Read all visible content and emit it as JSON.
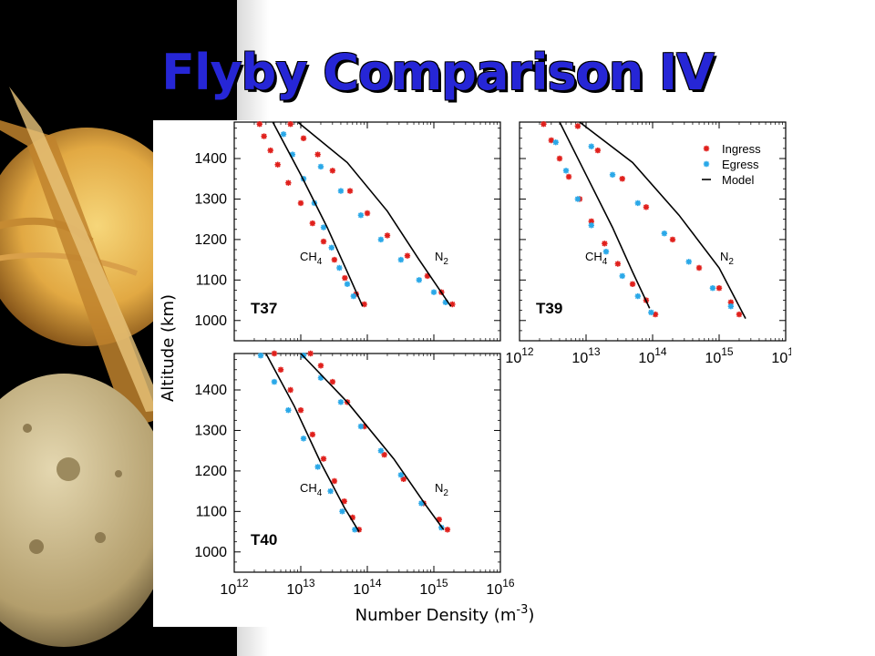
{
  "title": "Flyby Comparison IV",
  "chart_data": {
    "type": "scatter",
    "ylabel": "Altitude (km)",
    "xlabel_main": "Number Density (m",
    "xlabel_exp": "-3",
    "xlabel_close": ")",
    "x_scale": "log",
    "xlim": [
      1000000000000.0,
      1e+16
    ],
    "ylim": [
      950,
      1490
    ],
    "y_ticks": [
      "1000",
      "1100",
      "1200",
      "1300",
      "1400"
    ],
    "x_tick_base": "10",
    "x_tick_exps": [
      "12",
      "13",
      "14",
      "15",
      "16"
    ],
    "species_labels": {
      "ch4": "CH",
      "ch4_sub": "4",
      "n2": "N",
      "n2_sub": "2"
    },
    "legend": [
      {
        "label": "Ingress",
        "color": "#e0201c",
        "marker": "asterisk"
      },
      {
        "label": "Egress",
        "color": "#2aa8e8",
        "marker": "asterisk"
      },
      {
        "label": "Model",
        "color": "#000000",
        "marker": "line"
      }
    ],
    "panels": [
      {
        "label": "T37",
        "series": [
          {
            "name": "Ingress",
            "species": "CH4",
            "density": [
              2400000000000.0,
              2800000000000.0,
              3500000000000.0,
              4500000000000.0,
              6500000000000.0,
              10000000000000.0,
              15000000000000.0,
              22000000000000.0,
              32000000000000.0,
              46000000000000.0,
              68000000000000.0,
              90000000000000.0
            ],
            "altitude": [
              1485,
              1455,
              1420,
              1385,
              1340,
              1290,
              1240,
              1195,
              1150,
              1105,
              1065,
              1040
            ]
          },
          {
            "name": "Egress",
            "species": "CH4",
            "density": [
              5500000000000.0,
              7500000000000.0,
              11000000000000.0,
              16000000000000.0,
              22000000000000.0,
              29000000000000.0,
              38000000000000.0,
              50000000000000.0,
              62000000000000.0
            ],
            "altitude": [
              1460,
              1410,
              1350,
              1290,
              1230,
              1180,
              1130,
              1090,
              1060
            ]
          },
          {
            "name": "Ingress",
            "species": "N2",
            "density": [
              7000000000000.0,
              11000000000000.0,
              18000000000000.0,
              30000000000000.0,
              55000000000000.0,
              100000000000000.0,
              200000000000000.0,
              400000000000000.0,
              800000000000000.0,
              1300000000000000.0,
              1900000000000000.0
            ],
            "altitude": [
              1485,
              1450,
              1410,
              1370,
              1320,
              1265,
              1210,
              1160,
              1110,
              1070,
              1040
            ]
          },
          {
            "name": "Egress",
            "species": "N2",
            "density": [
              20000000000000.0,
              40000000000000.0,
              80000000000000.0,
              160000000000000.0,
              320000000000000.0,
              600000000000000.0,
              1000000000000000.0,
              1500000000000000.0
            ],
            "altitude": [
              1380,
              1320,
              1260,
              1200,
              1150,
              1100,
              1070,
              1045
            ]
          },
          {
            "name": "Model",
            "species": "CH4",
            "density": [
              3800000000000.0,
              10000000000000.0,
              25000000000000.0,
              50000000000000.0,
              85000000000000.0
            ],
            "altitude": [
              1490,
              1360,
              1230,
              1120,
              1035
            ]
          },
          {
            "name": "Model",
            "species": "N2",
            "density": [
              9000000000000.0,
              50000000000000.0,
              200000000000000.0,
              600000000000000.0,
              1800000000000000.0
            ],
            "altitude": [
              1490,
              1390,
              1270,
              1150,
              1035
            ]
          }
        ]
      },
      {
        "label": "T39",
        "series": [
          {
            "name": "Ingress",
            "species": "CH4",
            "density": [
              2300000000000.0,
              3000000000000.0,
              4000000000000.0,
              5500000000000.0,
              8000000000000.0,
              12000000000000.0,
              19000000000000.0,
              30000000000000.0,
              50000000000000.0,
              80000000000000.0,
              110000000000000.0
            ],
            "altitude": [
              1485,
              1445,
              1400,
              1355,
              1300,
              1245,
              1190,
              1140,
              1090,
              1050,
              1015
            ]
          },
          {
            "name": "Egress",
            "species": "CH4",
            "density": [
              3500000000000.0,
              5000000000000.0,
              7500000000000.0,
              12000000000000.0,
              20000000000000.0,
              35000000000000.0,
              60000000000000.0,
              95000000000000.0
            ],
            "altitude": [
              1440,
              1370,
              1300,
              1235,
              1170,
              1110,
              1060,
              1020
            ]
          },
          {
            "name": "Ingress",
            "species": "N2",
            "density": [
              7500000000000.0,
              15000000000000.0,
              35000000000000.0,
              80000000000000.0,
              200000000000000.0,
              500000000000000.0,
              1000000000000000.0,
              1500000000000000.0,
              2000000000000000.0
            ],
            "altitude": [
              1480,
              1420,
              1350,
              1280,
              1200,
              1130,
              1080,
              1045,
              1015
            ]
          },
          {
            "name": "Egress",
            "species": "N2",
            "density": [
              12000000000000.0,
              25000000000000.0,
              60000000000000.0,
              150000000000000.0,
              350000000000000.0,
              800000000000000.0,
              1500000000000000.0
            ],
            "altitude": [
              1430,
              1360,
              1290,
              1215,
              1145,
              1080,
              1035
            ]
          },
          {
            "name": "Model",
            "species": "CH4",
            "density": [
              4000000000000.0,
              10000000000000.0,
              25000000000000.0,
              50000000000000.0,
              90000000000000.0
            ],
            "altitude": [
              1490,
              1360,
              1230,
              1120,
              1030
            ]
          },
          {
            "name": "Model",
            "species": "N2",
            "density": [
              8000000000000.0,
              50000000000000.0,
              250000000000000.0,
              1000000000000000.0,
              2500000000000000.0
            ],
            "altitude": [
              1490,
              1390,
              1260,
              1130,
              1005
            ]
          }
        ]
      },
      {
        "label": "T40",
        "series": [
          {
            "name": "Ingress",
            "species": "CH4",
            "density": [
              4000000000000.0,
              5000000000000.0,
              7000000000000.0,
              10000000000000.0,
              15000000000000.0,
              22000000000000.0,
              32000000000000.0,
              45000000000000.0,
              60000000000000.0,
              75000000000000.0
            ],
            "altitude": [
              1490,
              1450,
              1400,
              1350,
              1290,
              1230,
              1175,
              1125,
              1085,
              1055
            ]
          },
          {
            "name": "Egress",
            "species": "CH4",
            "density": [
              2500000000000.0,
              4000000000000.0,
              6500000000000.0,
              11000000000000.0,
              18000000000000.0,
              28000000000000.0,
              42000000000000.0,
              65000000000000.0
            ],
            "altitude": [
              1485,
              1420,
              1350,
              1280,
              1210,
              1150,
              1100,
              1055
            ]
          },
          {
            "name": "Ingress",
            "species": "N2",
            "density": [
              14000000000000.0,
              20000000000000.0,
              30000000000000.0,
              50000000000000.0,
              90000000000000.0,
              180000000000000.0,
              350000000000000.0,
              700000000000000.0,
              1200000000000000.0,
              1600000000000000.0
            ],
            "altitude": [
              1490,
              1460,
              1420,
              1370,
              1310,
              1240,
              1180,
              1120,
              1080,
              1055
            ]
          },
          {
            "name": "Egress",
            "species": "N2",
            "density": [
              11000000000000.0,
              20000000000000.0,
              40000000000000.0,
              80000000000000.0,
              160000000000000.0,
              320000000000000.0,
              650000000000000.0,
              1300000000000000.0
            ],
            "altitude": [
              1485,
              1430,
              1370,
              1310,
              1250,
              1190,
              1120,
              1060
            ]
          },
          {
            "name": "Model",
            "species": "CH4",
            "density": [
              3000000000000.0,
              8000000000000.0,
              20000000000000.0,
              45000000000000.0,
              75000000000000.0
            ],
            "altitude": [
              1490,
              1360,
              1220,
              1110,
              1050
            ]
          },
          {
            "name": "Model",
            "species": "N2",
            "density": [
              10000000000000.0,
              50000000000000.0,
              250000000000000.0,
              800000000000000.0,
              1400000000000000.0
            ],
            "altitude": [
              1490,
              1370,
              1230,
              1110,
              1055
            ]
          }
        ]
      }
    ]
  }
}
